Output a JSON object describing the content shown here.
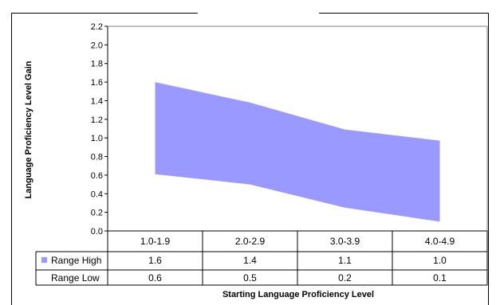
{
  "chart_data": {
    "type": "area",
    "categories": [
      "1.0-1.9",
      "2.0-2.9",
      "3.0-3.9",
      "4.0-4.9"
    ],
    "series": [
      {
        "name": "Range High",
        "values": [
          1.6,
          1.38,
          1.09,
          0.97
        ]
      },
      {
        "name": "Range Low",
        "values": [
          0.61,
          0.5,
          0.25,
          0.1
        ]
      }
    ],
    "table_values": {
      "Range High": [
        "1.6",
        "1.4",
        "1.1",
        "1.0"
      ],
      "Range Low": [
        "0.6",
        "0.5",
        "0.2",
        "0.1"
      ]
    },
    "title": "",
    "xlabel": "Starting Language Proficiency Level",
    "ylabel": "Language Proficiency Level Gain",
    "ylim": [
      0,
      2.2
    ],
    "yticks": [
      "0.0",
      "0.2",
      "0.4",
      "0.6",
      "0.8",
      "1.0",
      "1.2",
      "1.4",
      "1.6",
      "1.8",
      "2.0",
      "2.2"
    ],
    "grid": false,
    "legend": "data-table",
    "colors": {
      "fill": "#9999ff",
      "border": "#000000",
      "plot_border": "#808080"
    }
  }
}
